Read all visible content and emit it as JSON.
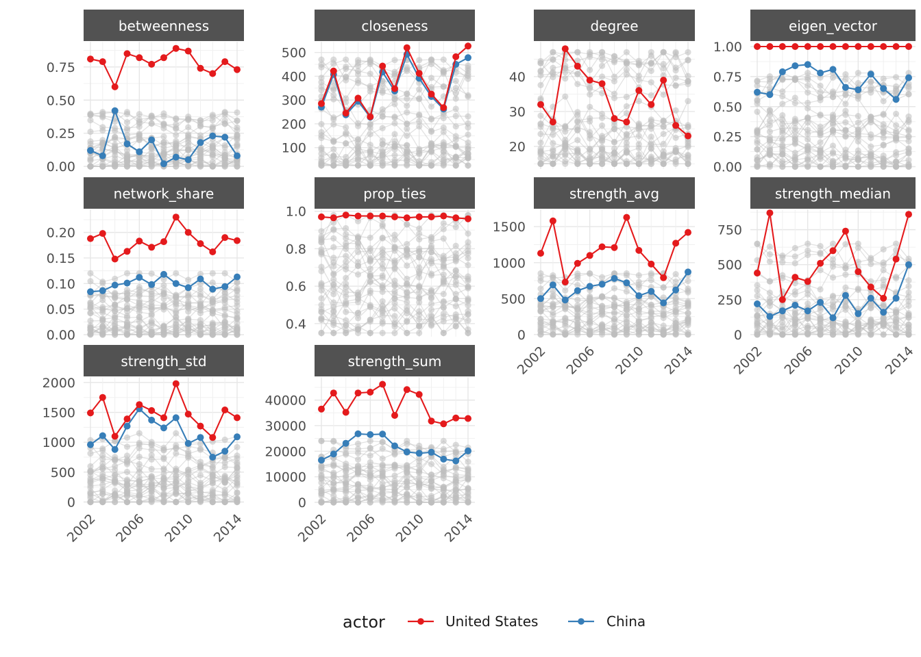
{
  "chart_data": {
    "type": "line",
    "layout": "facet-grid",
    "x": [
      2002,
      2003,
      2004,
      2005,
      2006,
      2007,
      2008,
      2009,
      2010,
      2011,
      2012,
      2013,
      2014
    ],
    "x_ticks": [
      "2002",
      "2006",
      "2010",
      "2014"
    ],
    "legend": {
      "title": "actor",
      "placement": "bottom",
      "items": [
        {
          "name": "United States",
          "color": "#e41a1c"
        },
        {
          "name": "China",
          "color": "#377eb8"
        }
      ]
    },
    "background_color": "#bebebe",
    "grid": true,
    "panels": [
      {
        "title": "betweenness",
        "ylim": [
          -0.02,
          0.94
        ],
        "y_ticks": [
          0,
          0.25,
          0.5,
          0.75
        ],
        "y_tick_labels": [
          "0.00",
          "0.25",
          "0.50",
          "0.75"
        ],
        "series": [
          {
            "name": "United States",
            "values": [
              0.81,
              0.79,
              0.6,
              0.85,
              0.82,
              0.77,
              0.82,
              0.89,
              0.87,
              0.74,
              0.7,
              0.79,
              0.73
            ]
          },
          {
            "name": "China",
            "values": [
              0.12,
              0.08,
              0.42,
              0.17,
              0.11,
              0.2,
              0.02,
              0.07,
              0.05,
              0.18,
              0.23,
              0.22,
              0.08
            ]
          }
        ],
        "background": {
          "min": 0,
          "max": 0.41
        }
      },
      {
        "title": "closeness",
        "ylim": [
          10,
          545
        ],
        "y_ticks": [
          100,
          200,
          300,
          400,
          500
        ],
        "y_tick_labels": [
          "100",
          "200",
          "300",
          "400",
          "500"
        ],
        "series": [
          {
            "name": "United States",
            "values": [
              285,
              422,
              245,
              308,
              230,
              443,
              348,
              520,
              412,
              325,
              268,
              482,
              527
            ]
          },
          {
            "name": "China",
            "values": [
              270,
              408,
              238,
              295,
              228,
              418,
              338,
              492,
              392,
              315,
              262,
              450,
              478
            ]
          }
        ],
        "background": {
          "min": 25,
          "max": 470
        }
      },
      {
        "title": "degree",
        "ylim": [
          13.5,
          50
        ],
        "y_ticks": [
          20,
          30,
          40
        ],
        "y_tick_labels": [
          "20",
          "30",
          "40"
        ],
        "series": [
          {
            "name": "United States",
            "values": [
              32,
              27,
              48,
              43,
              39,
              38,
              28,
              27,
              36,
              32,
              39,
              26,
              23
            ]
          }
        ],
        "background": {
          "min": 15,
          "max": 47
        }
      },
      {
        "title": "eigen_vector",
        "ylim": [
          -0.02,
          1.04
        ],
        "y_ticks": [
          0,
          0.25,
          0.5,
          0.75,
          1.0
        ],
        "y_tick_labels": [
          "0.00",
          "0.25",
          "0.50",
          "0.75",
          "1.00"
        ],
        "series": [
          {
            "name": "United States",
            "values": [
              1,
              1,
              1,
              1,
              1,
              1,
              1,
              1,
              1,
              1,
              1,
              1,
              1
            ]
          },
          {
            "name": "China",
            "values": [
              0.62,
              0.6,
              0.79,
              0.84,
              0.85,
              0.78,
              0.81,
              0.66,
              0.64,
              0.77,
              0.65,
              0.56,
              0.74
            ]
          }
        ],
        "background": {
          "min": 0,
          "max": 0.78
        }
      },
      {
        "title": "network_share",
        "ylim": [
          -0.004,
          0.245
        ],
        "y_ticks": [
          0,
          0.05,
          0.1,
          0.15,
          0.2
        ],
        "y_tick_labels": [
          "0.00",
          "0.05",
          "0.10",
          "0.15",
          "0.20"
        ],
        "series": [
          {
            "name": "United States",
            "values": [
              0.188,
              0.198,
              0.148,
              0.163,
              0.183,
              0.171,
              0.182,
              0.23,
              0.2,
              0.178,
              0.162,
              0.19,
              0.184
            ]
          },
          {
            "name": "China",
            "values": [
              0.084,
              0.086,
              0.097,
              0.101,
              0.112,
              0.098,
              0.118,
              0.1,
              0.092,
              0.109,
              0.089,
              0.094,
              0.113
            ]
          }
        ],
        "background": {
          "min": 0,
          "max": 0.12
        }
      },
      {
        "title": "prop_ties",
        "ylim": [
          0.33,
          1.01
        ],
        "y_ticks": [
          0.4,
          0.6,
          0.8,
          1.0
        ],
        "y_tick_labels": [
          "0.4",
          "0.6",
          "0.8",
          "1.0"
        ],
        "series": [
          {
            "name": "United States",
            "values": [
              0.97,
              0.965,
              0.98,
              0.975,
              0.975,
              0.975,
              0.97,
              0.965,
              0.97,
              0.97,
              0.975,
              0.965,
              0.96
            ]
          }
        ],
        "background": {
          "min": 0.35,
          "max": 0.98
        }
      },
      {
        "title": "strength_avg",
        "ylim": [
          -30,
          1740
        ],
        "y_ticks": [
          0,
          500,
          1000,
          1500
        ],
        "y_tick_labels": [
          "0",
          "500",
          "1000",
          "1500"
        ],
        "series": [
          {
            "name": "United States",
            "values": [
              1130,
              1580,
              730,
              990,
              1100,
              1220,
              1210,
              1630,
              1170,
              980,
              790,
              1270,
              1420
            ]
          },
          {
            "name": "China",
            "values": [
              500,
              690,
              480,
              610,
              670,
              700,
              780,
              720,
              540,
              600,
              440,
              620,
              870
            ]
          }
        ],
        "background": {
          "min": 0,
          "max": 850
        }
      },
      {
        "title": "strength_median",
        "ylim": [
          -15,
          895
        ],
        "y_ticks": [
          0,
          250,
          500,
          750
        ],
        "y_tick_labels": [
          "0",
          "250",
          "500",
          "750"
        ],
        "series": [
          {
            "name": "United States",
            "values": [
              440,
              870,
              250,
              410,
              380,
              510,
              600,
              740,
              450,
              340,
              260,
              540,
              860
            ]
          },
          {
            "name": "China",
            "values": [
              220,
              130,
              170,
              210,
              170,
              230,
              120,
              280,
              150,
              260,
              160,
              260,
              500
            ]
          }
        ],
        "background": {
          "min": 0,
          "max": 650
        }
      },
      {
        "title": "strength_std",
        "ylim": [
          -40,
          2090
        ],
        "y_ticks": [
          0,
          500,
          1000,
          1500,
          2000
        ],
        "y_tick_labels": [
          "0",
          "500",
          "1000",
          "1500",
          "2000"
        ],
        "series": [
          {
            "name": "United States",
            "values": [
              1490,
              1750,
              1100,
              1390,
              1630,
              1530,
              1410,
              1980,
              1470,
              1270,
              1080,
              1540,
              1410
            ]
          },
          {
            "name": "China",
            "values": [
              960,
              1110,
              880,
              1270,
              1560,
              1370,
              1240,
              1410,
              980,
              1080,
              750,
              850,
              1090
            ]
          }
        ],
        "background": {
          "min": 0,
          "max": 1150
        }
      },
      {
        "title": "strength_sum",
        "ylim": [
          -800,
          49000
        ],
        "y_ticks": [
          0,
          10000,
          20000,
          30000,
          40000
        ],
        "y_tick_labels": [
          "0",
          "10000",
          "20000",
          "30000",
          "40000"
        ],
        "series": [
          {
            "name": "United States",
            "values": [
              36500,
              42800,
              35200,
              42800,
              43100,
              46200,
              34000,
              44100,
              42200,
              31800,
              30700,
              33000,
              32800
            ]
          },
          {
            "name": "China",
            "values": [
              16500,
              18900,
              23100,
              26800,
              26500,
              26700,
              22100,
              19700,
              19200,
              19600,
              16900,
              16200,
              20100
            ]
          }
        ],
        "background": {
          "min": 0,
          "max": 24000
        }
      }
    ]
  }
}
